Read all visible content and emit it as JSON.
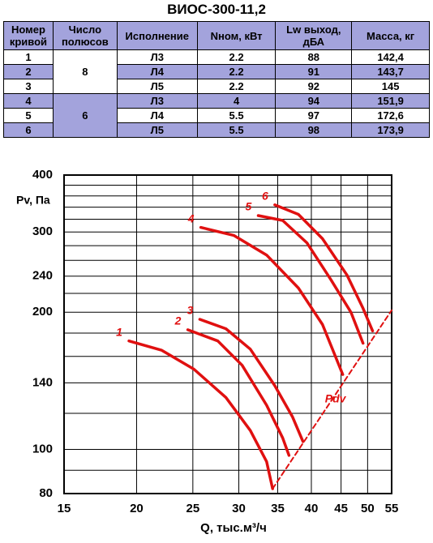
{
  "title": "ВИОС-300-11,2",
  "table": {
    "header": [
      "Номер кривой",
      "Число полюсов",
      "Исполнение",
      "Nном, кВт",
      "Lw выход, дБА",
      "Масса, кг"
    ],
    "rows": [
      [
        "1",
        "Л3",
        "2.2",
        "88",
        "142,4"
      ],
      [
        "2",
        "Л4",
        "2.2",
        "91",
        "143,7"
      ],
      [
        "3",
        "Л5",
        "2.2",
        "92",
        "145"
      ],
      [
        "4",
        "Л3",
        "4",
        "94",
        "151,9"
      ],
      [
        "5",
        "Л4",
        "5.5",
        "97",
        "172,6"
      ],
      [
        "6",
        "Л5",
        "5.5",
        "98",
        "173,9"
      ]
    ],
    "poles": [
      "8",
      "6"
    ]
  },
  "chart_data": {
    "type": "line",
    "x_label": "Q, тыс.м³/ч",
    "y_label": "Pv, Па",
    "xlog": true,
    "ylog": true,
    "grid": true,
    "xlim": [
      15,
      55
    ],
    "ylim": [
      80,
      400
    ],
    "xticks": [
      15,
      20,
      25,
      30,
      35,
      40,
      45,
      50,
      55
    ],
    "yticks": [
      80,
      100,
      140,
      200,
      240,
      300,
      400
    ],
    "ygrid": [
      80,
      90,
      100,
      120,
      140,
      160,
      180,
      200,
      220,
      240,
      260,
      280,
      300,
      320,
      340,
      360,
      380,
      400
    ],
    "series": [
      {
        "name": "1",
        "color": "#e01010",
        "x": [
          19.4,
          22.1,
          25.1,
          28.5,
          31.4,
          33.5,
          34.3
        ],
        "values": [
          173,
          165,
          150,
          130,
          110,
          94,
          82
        ]
      },
      {
        "name": "2",
        "color": "#e01010",
        "x": [
          24.5,
          27.6,
          30.4,
          33.5,
          35.7,
          36.6
        ],
        "values": [
          183,
          173,
          153,
          125,
          106,
          97
        ]
      },
      {
        "name": "3",
        "color": "#e01010",
        "x": [
          25.7,
          28.5,
          31.4,
          34.6,
          37.1,
          38.7
        ],
        "values": [
          193,
          184,
          166,
          138,
          118,
          104
        ]
      },
      {
        "name": "4",
        "color": "#e01010",
        "x": [
          25.8,
          29.4,
          33.5,
          38.0,
          41.8,
          45.3
        ],
        "values": [
          307,
          295,
          267,
          226,
          188,
          146
        ]
      },
      {
        "name": "5",
        "color": "#e01010",
        "x": [
          32.4,
          35.7,
          39.3,
          43.2,
          46.8,
          49.1
        ],
        "values": [
          326,
          318,
          284,
          236,
          200,
          171
        ]
      },
      {
        "name": "6",
        "color": "#e01010",
        "x": [
          34.6,
          38.0,
          41.8,
          46.1,
          49.1,
          51.0
        ],
        "values": [
          344,
          328,
          290,
          241,
          204,
          182
        ]
      },
      {
        "name": "Pdv",
        "color": "#e01010",
        "dashed": true,
        "x": [
          34.3,
          55
        ],
        "values": [
          82,
          202
        ]
      }
    ]
  }
}
